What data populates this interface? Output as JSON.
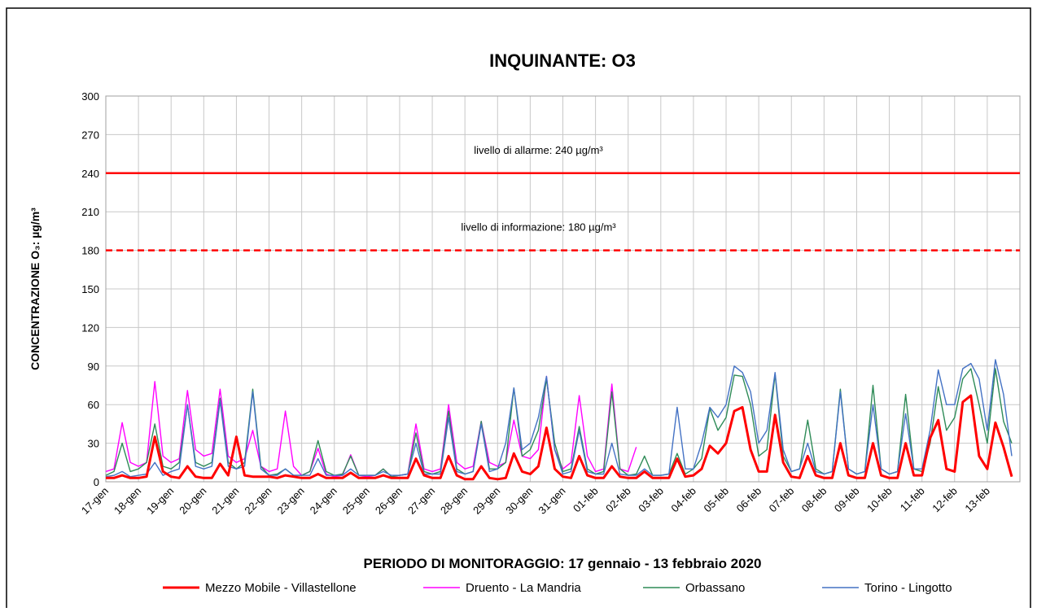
{
  "chart_data": {
    "type": "line",
    "title": "INQUINANTE: O3",
    "ylabel": "CONCENTRAZIONE O₃: µg/m³",
    "xlabel": "PERIODO DI MONITORAGGIO: 17 gennaio - 13 febbraio 2020",
    "ylim": [
      0,
      300
    ],
    "yticks": [
      0,
      30,
      60,
      90,
      120,
      150,
      180,
      210,
      240,
      270,
      300
    ],
    "grid": true,
    "legend": "bottom",
    "reference_lines": [
      {
        "value": 240,
        "label": "livello di allarme: 240 µg/m³",
        "style": "solid",
        "color": "#ff0000"
      },
      {
        "value": 180,
        "label": "livello di informazione: 180 µg/m³",
        "style": "dashed",
        "color": "#ff0000"
      }
    ],
    "categories": [
      "17-gen",
      null,
      null,
      null,
      "18-gen",
      null,
      null,
      null,
      "19-gen",
      null,
      null,
      null,
      "20-gen",
      null,
      null,
      null,
      "21-gen",
      null,
      null,
      null,
      "22-gen",
      null,
      null,
      null,
      "23-gen",
      null,
      null,
      null,
      "24-gen",
      null,
      null,
      null,
      "25-gen",
      null,
      null,
      null,
      "26-gen",
      null,
      null,
      null,
      "27-gen",
      null,
      null,
      null,
      "28-gen",
      null,
      null,
      null,
      "29-gen",
      null,
      null,
      null,
      "30-gen",
      null,
      null,
      null,
      "31-gen",
      null,
      null,
      null,
      "01-feb",
      null,
      null,
      null,
      "02-feb",
      null,
      null,
      null,
      "03-feb",
      null,
      null,
      null,
      "04-feb",
      null,
      null,
      null,
      "05-feb",
      null,
      null,
      null,
      "06-feb",
      null,
      null,
      null,
      "07-feb",
      null,
      null,
      null,
      "08-feb",
      null,
      null,
      null,
      "09-feb",
      null,
      null,
      null,
      "10-feb",
      null,
      null,
      null,
      "11-feb",
      null,
      null,
      null,
      "12-feb",
      null,
      null,
      null,
      "13-feb",
      null,
      null,
      null
    ],
    "series": [
      {
        "name": "Mezzo Mobile - Villastellone",
        "color": "#ff0000",
        "values": [
          3,
          3,
          5,
          3,
          3,
          4,
          35,
          8,
          4,
          3,
          12,
          4,
          3,
          3,
          14,
          5,
          35,
          5,
          4,
          4,
          4,
          3,
          5,
          4,
          3,
          3,
          6,
          3,
          3,
          3,
          7,
          3,
          3,
          3,
          5,
          3,
          3,
          3,
          18,
          5,
          3,
          3,
          20,
          5,
          2,
          2,
          12,
          3,
          2,
          3,
          22,
          8,
          6,
          12,
          42,
          10,
          4,
          3,
          20,
          5,
          3,
          3,
          12,
          4,
          3,
          3,
          8,
          3,
          3,
          3,
          18,
          4,
          5,
          10,
          28,
          22,
          30,
          55,
          58,
          25,
          8,
          8,
          52,
          15,
          4,
          3,
          20,
          5,
          3,
          3,
          30,
          5,
          3,
          3,
          30,
          5,
          3,
          3,
          30,
          5,
          5,
          34,
          48,
          10,
          8,
          62,
          67,
          20,
          10,
          46,
          27,
          4
        ]
      },
      {
        "name": "Druento - La Mandria",
        "color": "#ff00ff",
        "values": [
          8,
          10,
          46,
          15,
          12,
          15,
          78,
          20,
          15,
          18,
          71,
          25,
          20,
          22,
          72,
          20,
          15,
          18,
          40,
          12,
          8,
          10,
          55,
          12,
          5,
          8,
          26,
          6,
          4,
          5,
          21,
          5,
          4,
          5,
          10,
          4,
          5,
          6,
          45,
          10,
          8,
          10,
          60,
          15,
          10,
          12,
          47,
          15,
          12,
          15,
          48,
          20,
          18,
          25,
          82,
          25,
          10,
          15,
          67,
          20,
          8,
          10,
          76,
          10,
          8,
          27,
          null,
          null,
          null,
          null,
          null,
          null,
          null,
          null,
          null,
          null,
          null,
          null,
          null,
          null,
          null,
          null,
          null,
          null,
          null,
          null,
          null,
          null,
          null,
          null,
          null,
          null,
          null,
          null,
          null,
          null,
          null,
          null,
          null,
          null,
          null,
          null,
          null,
          null,
          null,
          null,
          null,
          null,
          null,
          null,
          null,
          null
        ]
      },
      {
        "name": "Orbassano",
        "color": "#2e8b57",
        "values": [
          5,
          8,
          30,
          8,
          10,
          15,
          45,
          12,
          10,
          15,
          60,
          15,
          12,
          15,
          65,
          15,
          10,
          15,
          72,
          12,
          5,
          6,
          10,
          5,
          5,
          8,
          32,
          8,
          5,
          6,
          20,
          5,
          5,
          5,
          10,
          4,
          5,
          6,
          38,
          8,
          6,
          8,
          55,
          10,
          6,
          8,
          47,
          10,
          10,
          15,
          73,
          20,
          25,
          40,
          80,
          30,
          8,
          10,
          43,
          10,
          6,
          8,
          70,
          10,
          5,
          6,
          20,
          5,
          5,
          6,
          22,
          6,
          10,
          18,
          57,
          40,
          50,
          83,
          82,
          60,
          20,
          25,
          84,
          20,
          8,
          10,
          48,
          10,
          6,
          8,
          72,
          10,
          6,
          8,
          75,
          10,
          6,
          8,
          68,
          10,
          8,
          30,
          74,
          40,
          50,
          80,
          88,
          60,
          30,
          88,
          47,
          30
        ]
      },
      {
        "name": "Torino - Lingotto",
        "color": "#4472c4",
        "values": [
          4,
          5,
          8,
          4,
          5,
          6,
          15,
          5,
          8,
          10,
          60,
          12,
          10,
          12,
          63,
          12,
          10,
          12,
          70,
          10,
          5,
          5,
          10,
          5,
          5,
          5,
          18,
          5,
          5,
          5,
          10,
          5,
          5,
          5,
          8,
          5,
          5,
          6,
          30,
          6,
          6,
          6,
          50,
          8,
          6,
          8,
          45,
          8,
          10,
          30,
          73,
          25,
          30,
          50,
          82,
          25,
          6,
          8,
          40,
          8,
          6,
          6,
          30,
          6,
          5,
          5,
          10,
          5,
          5,
          6,
          58,
          10,
          10,
          30,
          58,
          50,
          60,
          90,
          85,
          70,
          30,
          40,
          85,
          25,
          8,
          10,
          30,
          8,
          6,
          8,
          70,
          10,
          6,
          8,
          60,
          10,
          6,
          8,
          53,
          10,
          10,
          40,
          87,
          60,
          60,
          88,
          92,
          80,
          40,
          95,
          68,
          20
        ]
      }
    ]
  }
}
